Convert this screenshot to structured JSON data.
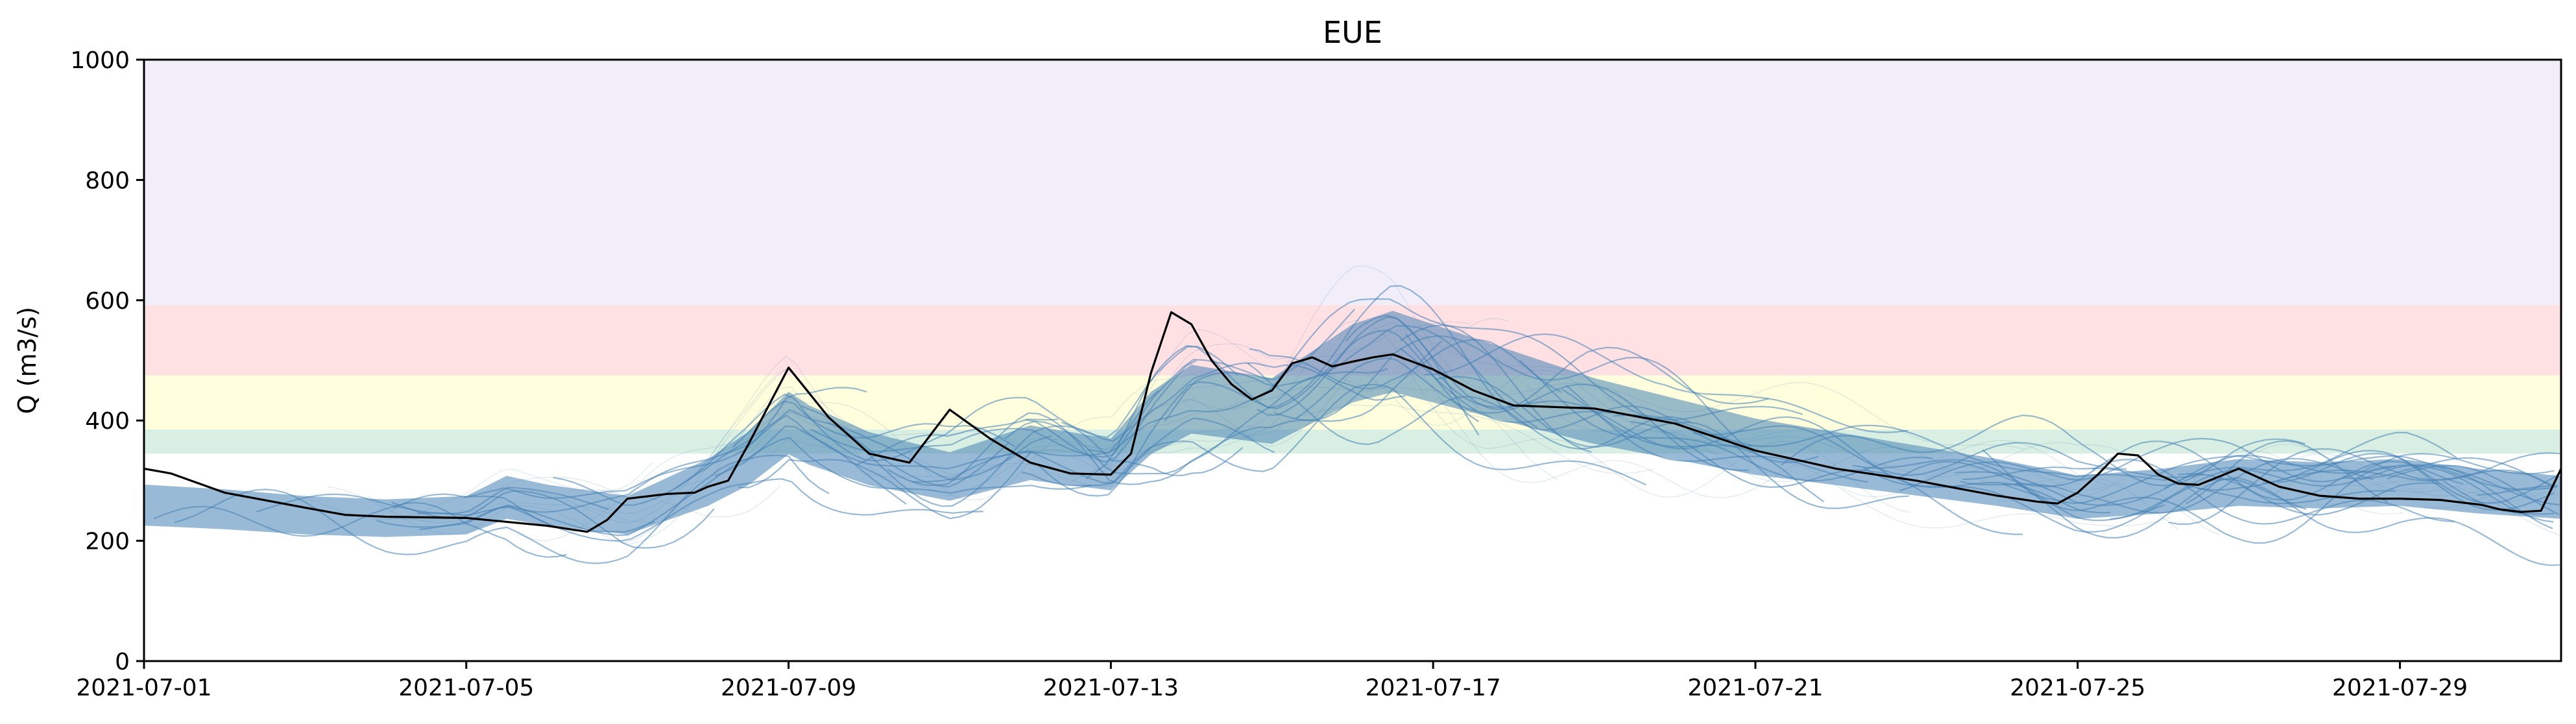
{
  "chart_data": {
    "type": "line",
    "title": "EUE",
    "xlabel": "",
    "ylabel": "Q (m3/s)",
    "xlim": [
      "2021-07-01",
      "2021-07-31"
    ],
    "ylim": [
      0,
      1000
    ],
    "grid": false,
    "x_ticks": [
      "2021-07-01",
      "2021-07-05",
      "2021-07-09",
      "2021-07-13",
      "2021-07-17",
      "2021-07-21",
      "2021-07-25",
      "2021-07-29"
    ],
    "y_ticks": [
      0,
      200,
      400,
      600,
      800,
      1000
    ],
    "threshold_bands": [
      {
        "y0": 345,
        "y1": 385,
        "color": "#d9efe3"
      },
      {
        "y0": 385,
        "y1": 475,
        "color": "#fffedd"
      },
      {
        "y0": 475,
        "y1": 592,
        "color": "#ffe1e4"
      },
      {
        "y0": 592,
        "y1": 1000,
        "color": "#f1eefa"
      }
    ],
    "ensemble": {
      "color": "#4682b4",
      "median": [
        [
          "2021-07-01",
          262
        ],
        [
          "2021-07-02",
          255
        ],
        [
          "2021-07-03",
          245
        ],
        [
          "2021-07-04",
          240
        ],
        [
          "2021-07-05",
          245
        ],
        [
          "2021-07-05 12:00",
          275
        ],
        [
          "2021-07-06",
          262
        ],
        [
          "2021-07-07",
          245
        ],
        [
          "2021-07-08",
          300
        ],
        [
          "2021-07-08 12:00",
          340
        ],
        [
          "2021-07-09",
          400
        ],
        [
          "2021-07-09 06:00",
          380
        ],
        [
          "2021-07-10",
          340
        ],
        [
          "2021-07-11",
          310
        ],
        [
          "2021-07-12",
          350
        ],
        [
          "2021-07-13",
          330
        ],
        [
          "2021-07-13 12:00",
          400
        ],
        [
          "2021-07-14",
          440
        ],
        [
          "2021-07-15",
          420
        ],
        [
          "2021-07-15 12:00",
          460
        ],
        [
          "2021-07-16",
          500
        ],
        [
          "2021-07-16 12:00",
          520
        ],
        [
          "2021-07-17",
          500
        ],
        [
          "2021-07-18",
          460
        ],
        [
          "2021-07-19",
          420
        ],
        [
          "2021-07-20",
          390
        ],
        [
          "2021-07-21",
          360
        ],
        [
          "2021-07-22",
          340
        ],
        [
          "2021-07-23",
          320
        ],
        [
          "2021-07-24",
          300
        ],
        [
          "2021-07-24 18:00",
          282
        ],
        [
          "2021-07-25",
          275
        ],
        [
          "2021-07-26",
          285
        ],
        [
          "2021-07-27",
          300
        ],
        [
          "2021-07-28",
          295
        ],
        [
          "2021-07-29",
          300
        ],
        [
          "2021-07-30",
          285
        ],
        [
          "2021-07-31",
          275
        ]
      ]
    },
    "series": [
      {
        "color": "#000000",
        "x": [
          "2021-07-01",
          "2021-07-01 08:00",
          "2021-07-02",
          "2021-07-03",
          "2021-07-03 12:00",
          "2021-07-04",
          "2021-07-05",
          "2021-07-06",
          "2021-07-06 12:00",
          "2021-07-06 18:00",
          "2021-07-07",
          "2021-07-07 12:00",
          "2021-07-07 20:00",
          "2021-07-08",
          "2021-07-08 06:00",
          "2021-07-08 12:00",
          "2021-07-09",
          "2021-07-09 12:00",
          "2021-07-10",
          "2021-07-10 12:00",
          "2021-07-11",
          "2021-07-11 12:00",
          "2021-07-12",
          "2021-07-12 12:00",
          "2021-07-13",
          "2021-07-13 06:00",
          "2021-07-13 12:00",
          "2021-07-13 18:00",
          "2021-07-14",
          "2021-07-14 06:00",
          "2021-07-14 12:00",
          "2021-07-14 18:00",
          "2021-07-15",
          "2021-07-15 06:00",
          "2021-07-15 12:00",
          "2021-07-15 18:00",
          "2021-07-16",
          "2021-07-16 06:00",
          "2021-07-16 12:00",
          "2021-07-17",
          "2021-07-17 12:00",
          "2021-07-18",
          "2021-07-19",
          "2021-07-20",
          "2021-07-21",
          "2021-07-22",
          "2021-07-23",
          "2021-07-24",
          "2021-07-24 12:00",
          "2021-07-24 18:00",
          "2021-07-25",
          "2021-07-25 06:00",
          "2021-07-25 12:00",
          "2021-07-25 18:00",
          "2021-07-26",
          "2021-07-26 06:00",
          "2021-07-26 12:00",
          "2021-07-27",
          "2021-07-27 12:00",
          "2021-07-28",
          "2021-07-28 12:00",
          "2021-07-29",
          "2021-07-29 12:00",
          "2021-07-30",
          "2021-07-30 06:00",
          "2021-07-30 12:00",
          "2021-07-30 18:00",
          "2021-07-31"
        ],
        "values": [
          320,
          312,
          280,
          255,
          243,
          240,
          238,
          225,
          215,
          235,
          270,
          278,
          280,
          290,
          300,
          360,
          488,
          405,
          345,
          330,
          418,
          370,
          330,
          312,
          310,
          345,
          480,
          580,
          560,
          500,
          460,
          435,
          450,
          495,
          505,
          490,
          498,
          505,
          510,
          485,
          450,
          425,
          420,
          395,
          350,
          320,
          300,
          275,
          265,
          262,
          280,
          310,
          345,
          342,
          310,
          295,
          293,
          320,
          290,
          275,
          270,
          270,
          268,
          260,
          252,
          248,
          250,
          320
        ]
      }
    ]
  }
}
